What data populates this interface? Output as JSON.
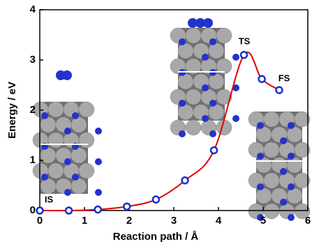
{
  "chart_data": {
    "type": "line",
    "xlabel": "Reaction path / Å",
    "ylabel": "Energy / eV",
    "xlim": [
      0,
      6
    ],
    "xticks": [
      0,
      1,
      2,
      3,
      4,
      5,
      6
    ],
    "ylim": [
      0,
      4
    ],
    "yticks": [
      0,
      1,
      2,
      3,
      4
    ],
    "series": [
      {
        "color": "#e00000",
        "marker_color": "#1a2fd0",
        "x": [
          0,
          0.65,
          1.3,
          1.95,
          2.6,
          3.25,
          3.9,
          4.57,
          4.97,
          5.36
        ],
        "values": [
          0,
          0,
          0.02,
          0.08,
          0.22,
          0.6,
          1.2,
          3.1,
          2.62,
          2.4
        ]
      }
    ],
    "annotations": [
      "IS",
      "TS",
      "FS"
    ]
  }
}
